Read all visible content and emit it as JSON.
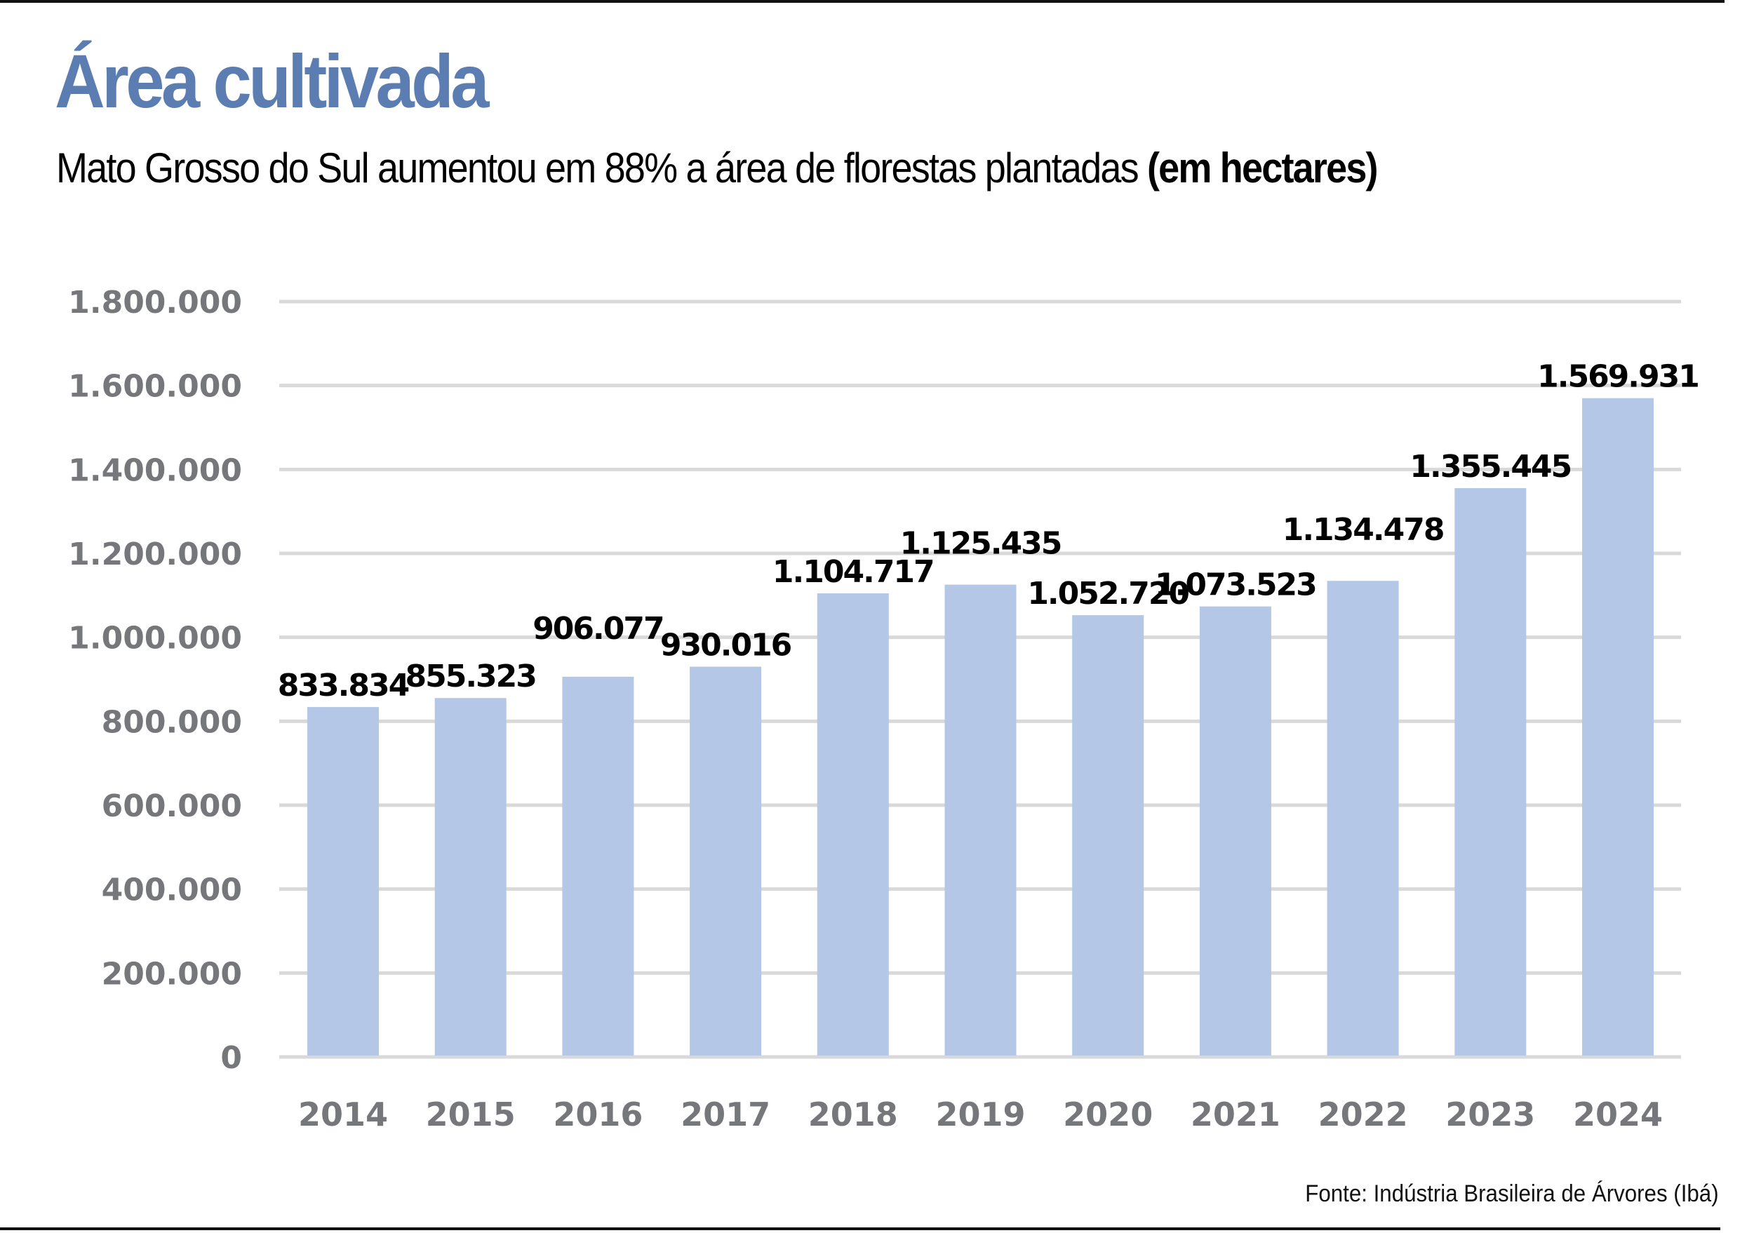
{
  "header": {
    "title": "Área cultivada",
    "subtitle": "Mato Grosso do Sul aumentou em 88% a área de florestas plantadas",
    "subtitle_unit": "(em hectares)"
  },
  "footer": {
    "source": "Fonte: Indústria Brasileira de Árvores (Ibá)"
  },
  "colors": {
    "title": "#5B7DB1",
    "bar": "#B4C7E7",
    "grid": "#D9D9D9",
    "axis_text": "#76777B",
    "data_label": "#000000"
  },
  "chart_data": {
    "type": "bar",
    "title": "Área cultivada",
    "subtitle": "Mato Grosso do Sul aumentou em 88% a área de florestas plantadas (em hectares)",
    "xlabel": "",
    "ylabel": "",
    "categories": [
      "2014",
      "2015",
      "2016",
      "2017",
      "2018",
      "2019",
      "2020",
      "2021",
      "2022",
      "2023",
      "2024"
    ],
    "values": [
      833834,
      855323,
      906077,
      930016,
      1104717,
      1125435,
      1052720,
      1073523,
      1134478,
      1355445,
      1569931
    ],
    "value_labels": [
      "833.834",
      "855.323",
      "906.077",
      "930.016",
      "1.104.717",
      "1.125.435",
      "1.052.720",
      "1.073.523",
      "1.134.478",
      "1.355.445",
      "1.569.931"
    ],
    "ylim": [
      0,
      1800000
    ],
    "yticks": [
      0,
      200000,
      400000,
      600000,
      800000,
      1000000,
      1200000,
      1400000,
      1600000,
      1800000
    ],
    "ytick_labels": [
      "0",
      "200.000",
      "400.000",
      "600.000",
      "800.000",
      "1.000.000",
      "1.200.000",
      "1.400.000",
      "1.600.000",
      "1.800.000"
    ],
    "grid": true,
    "legend": "none",
    "source": "Fonte: Indústria Brasileira de Árvores (Ibá)"
  }
}
